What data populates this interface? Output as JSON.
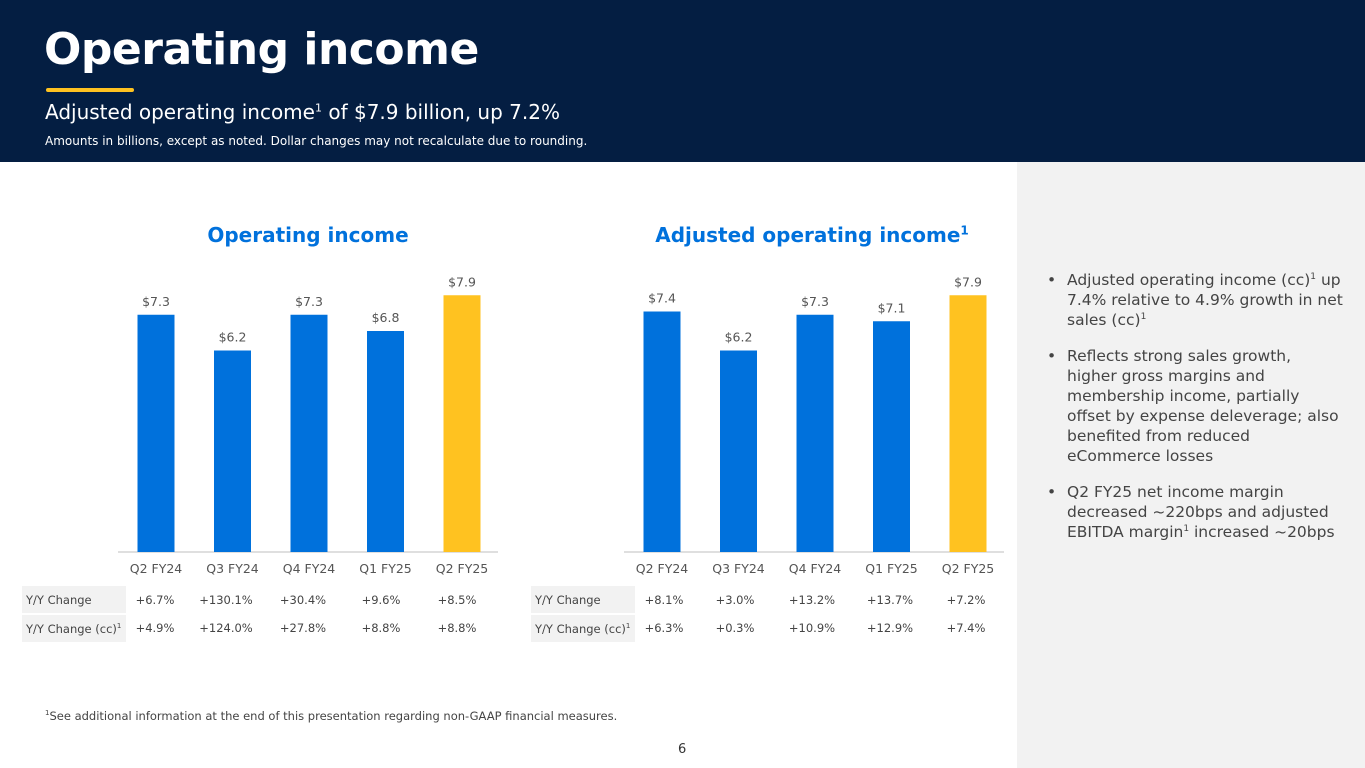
{
  "header": {
    "title": "Operating income",
    "subtitle_pre": "Adjusted operating income",
    "subtitle_sup": "1",
    "subtitle_post": " of $7.9 billion, up 7.2%",
    "note": "Amounts in billions, except as noted.  Dollar changes may not recalculate due to rounding."
  },
  "colors": {
    "header_bg": "#041e42",
    "bar_blue": "#0071dc",
    "bar_yellow": "#ffc220",
    "title_blue": "#0071dc",
    "panel_bg": "#f2f2f2"
  },
  "chart_data": [
    {
      "type": "bar",
      "title": "Operating income",
      "categories": [
        "Q2 FY24",
        "Q3 FY24",
        "Q4 FY24",
        "Q1 FY25",
        "Q2 FY25"
      ],
      "values": [
        7.3,
        6.2,
        7.3,
        6.8,
        7.9
      ],
      "data_labels": [
        "$7.3",
        "$6.2",
        "$7.3",
        "$6.8",
        "$7.9"
      ],
      "highlight_index": 4,
      "grid": false,
      "table": {
        "rows": [
          {
            "label": "Y/Y Change",
            "sup": "",
            "values": [
              "+6.7%",
              "+130.1%",
              "+30.4%",
              "+9.6%",
              "+8.5%"
            ]
          },
          {
            "label": "Y/Y Change (cc)",
            "sup": "1",
            "values": [
              "+4.9%",
              "+124.0%",
              "+27.8%",
              "+8.8%",
              "+8.8%"
            ]
          }
        ]
      }
    },
    {
      "type": "bar",
      "title": "Adjusted operating income",
      "title_sup": "1",
      "categories": [
        "Q2 FY24",
        "Q3 FY24",
        "Q4 FY24",
        "Q1 FY25",
        "Q2 FY25"
      ],
      "values": [
        7.4,
        6.2,
        7.3,
        7.1,
        7.9
      ],
      "data_labels": [
        "$7.4",
        "$6.2",
        "$7.3",
        "$7.1",
        "$7.9"
      ],
      "highlight_index": 4,
      "grid": false,
      "table": {
        "rows": [
          {
            "label": "Y/Y Change",
            "sup": "",
            "values": [
              "+8.1%",
              "+3.0%",
              "+13.2%",
              "+13.7%",
              "+7.2%"
            ]
          },
          {
            "label": "Y/Y Change (cc)",
            "sup": "1",
            "values": [
              "+6.3%",
              "+0.3%",
              "+10.9%",
              "+12.9%",
              "+7.4%"
            ]
          }
        ]
      }
    }
  ],
  "bullets": [
    {
      "pre": "Adjusted operating income (cc)",
      "sup1": "1",
      "mid": " up 7.4% relative to 4.9% growth in net sales (cc)",
      "sup2": "1",
      "post": ""
    },
    {
      "pre": "Reflects strong sales growth, higher gross margins and membership income, partially offset by expense deleverage; also benefited from reduced eCommerce losses",
      "sup1": "",
      "mid": "",
      "sup2": "",
      "post": ""
    },
    {
      "pre": "Q2 FY25 net income margin decreased ~220bps and adjusted EBITDA margin",
      "sup1": "1",
      "mid": " increased ~20bps",
      "sup2": "",
      "post": ""
    }
  ],
  "bullet_glyph": "•",
  "footnote": {
    "sup": "1",
    "text": "See additional information at the end of this presentation regarding non-GAAP financial measures."
  },
  "page_number": "6"
}
